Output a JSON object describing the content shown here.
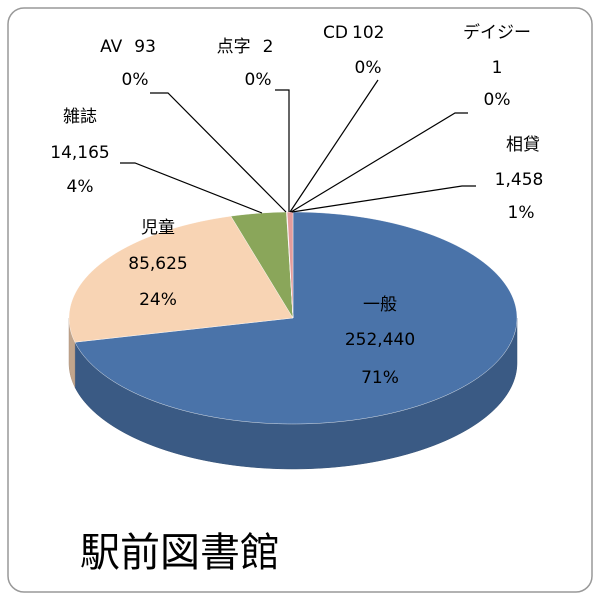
{
  "chart_data": {
    "type": "pie",
    "title": "駅前図書館",
    "categories": [
      "一般",
      "児童",
      "雑誌",
      "AV",
      "点字",
      "CD",
      "デイジー",
      "相貸"
    ],
    "values": [
      252440,
      85625,
      14165,
      93,
      2,
      102,
      1,
      1458
    ],
    "value_labels": [
      "252,440",
      "85,625",
      "14,165",
      "93",
      "2",
      "102",
      "1",
      "1,458"
    ],
    "percent_labels": [
      "71%",
      "24%",
      "4%",
      "0%",
      "0%",
      "0%",
      "0%",
      "1%"
    ],
    "colors": [
      "#4a73a9",
      "#f8d4b4",
      "#8aa65a",
      "#6f5a9c",
      "#4bacc6",
      "#f79646",
      "#2c4d75",
      "#e39c9c"
    ]
  }
}
